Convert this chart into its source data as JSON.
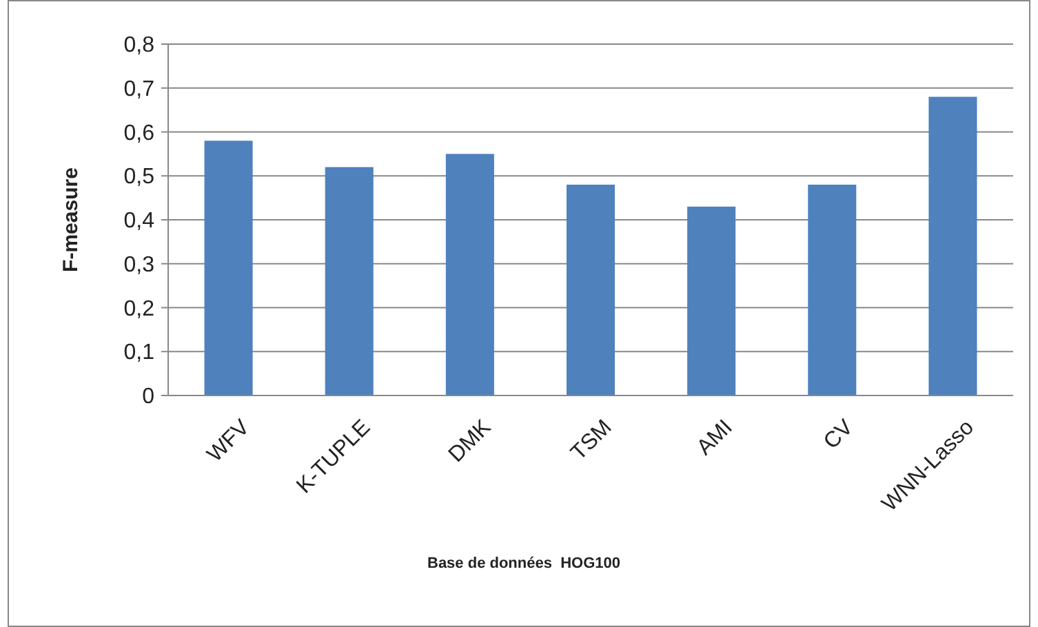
{
  "chart_data": {
    "type": "bar",
    "xlabel": "Base de données  HOG100",
    "ylabel": "F-measure",
    "categories": [
      "WFV",
      "K-TUPLE",
      "DMK",
      "TSM",
      "AMI",
      "CV",
      "WNN-Lasso"
    ],
    "values": [
      0.58,
      0.52,
      0.55,
      0.48,
      0.43,
      0.48,
      0.68
    ],
    "color": "#4f81bd",
    "ylim": [
      0,
      0.8
    ],
    "yticks": [
      {
        "value": 0,
        "label": "0"
      },
      {
        "value": 0.1,
        "label": "0,1"
      },
      {
        "value": 0.2,
        "label": "0,2"
      },
      {
        "value": 0.3,
        "label": "0,3"
      },
      {
        "value": 0.4,
        "label": "0,4"
      },
      {
        "value": 0.5,
        "label": "0,5"
      },
      {
        "value": 0.6,
        "label": "0,6"
      },
      {
        "value": 0.7,
        "label": "0,7"
      },
      {
        "value": 0.8,
        "label": "0,8"
      }
    ],
    "grid": "y"
  }
}
